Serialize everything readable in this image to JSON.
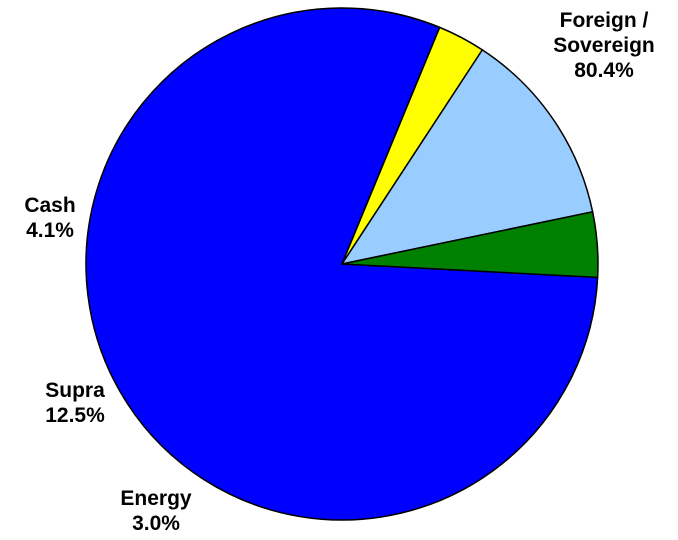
{
  "chart_data": {
    "type": "pie",
    "slices": [
      {
        "label_lines": [
          "Foreign /",
          "Sovereign"
        ],
        "value_label": "80.4%",
        "value": 80.4,
        "color": "#0000FF"
      },
      {
        "label_lines": [
          "Energy"
        ],
        "value_label": "3.0%",
        "value": 3.0,
        "color": "#FFFF00"
      },
      {
        "label_lines": [
          "Supra"
        ],
        "value_label": "12.5%",
        "value": 12.5,
        "color": "#99CCFF"
      },
      {
        "label_lines": [
          "Cash"
        ],
        "value_label": "4.1%",
        "value": 4.1,
        "color": "#008000"
      }
    ],
    "legend": "none"
  }
}
